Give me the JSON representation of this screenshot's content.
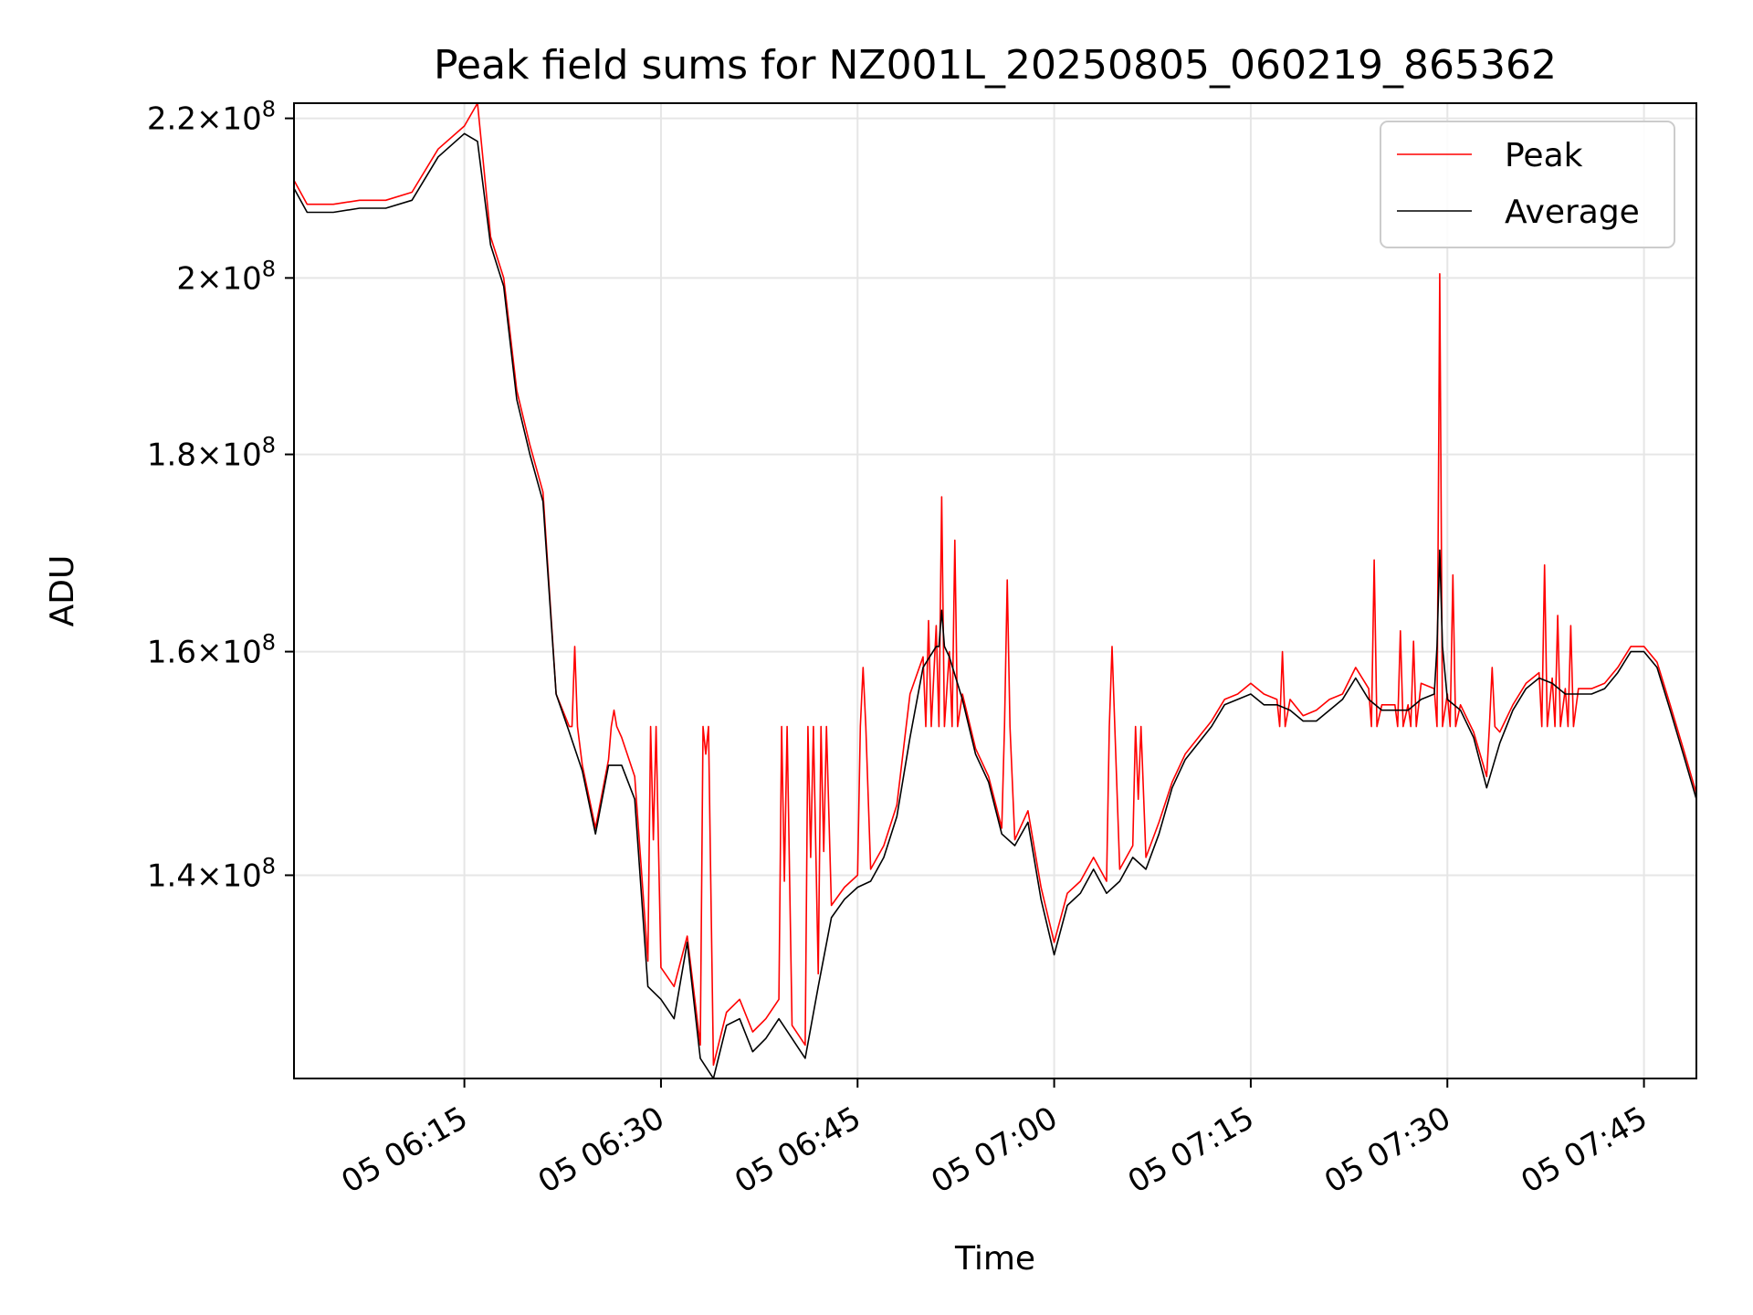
{
  "chart_data": {
    "type": "line",
    "title": "Peak field sums for NZ001L_20250805_060219_865362",
    "xlabel": "Time",
    "ylabel": "ADU",
    "x_range": [
      "05 06:02",
      "05 07:49"
    ],
    "y_range": [
      124000000,
      222000000
    ],
    "y_scale": "log",
    "grid": true,
    "legend_position": "top-right",
    "x_ticks": [
      {
        "t": "05 06:15",
        "label": "05 06:15"
      },
      {
        "t": "05 06:30",
        "label": "05 06:30"
      },
      {
        "t": "05 06:45",
        "label": "05 06:45"
      },
      {
        "t": "05 07:00",
        "label": "05 07:00"
      },
      {
        "t": "05 07:15",
        "label": "05 07:15"
      },
      {
        "t": "05 07:30",
        "label": "05 07:30"
      },
      {
        "t": "05 07:45",
        "label": "05 07:45"
      }
    ],
    "y_ticks": [
      {
        "value": 140000000,
        "mantissa": "1.4",
        "exponent": "8"
      },
      {
        "value": 160000000,
        "mantissa": "1.6",
        "exponent": "8"
      },
      {
        "value": 180000000,
        "mantissa": "1.8",
        "exponent": "8"
      },
      {
        "value": 200000000,
        "mantissa": "2",
        "exponent": "8"
      },
      {
        "value": 220000000,
        "mantissa": "2.2",
        "exponent": "8"
      }
    ],
    "series": [
      {
        "name": "Peak",
        "color": "#ff0000",
        "x": [
          "05 06:02",
          "05 06:03",
          "05 06:05",
          "05 06:07",
          "05 06:09",
          "05 06:11",
          "05 06:13",
          "05 06:15",
          "05 06:16",
          "05 06:17",
          "05 06:18",
          "05 06:19",
          "05 06:20",
          "05 06:21",
          "05 06:22",
          "05 06:23",
          "05 06:24",
          "05 06:25",
          "05 06:26",
          "05 06:27",
          "05 06:28",
          "05 06:29",
          "05 06:30",
          "05 06:31",
          "05 06:32",
          "05 06:33",
          "05 06:34",
          "05 06:35",
          "05 06:36",
          "05 06:37",
          "05 06:38",
          "05 06:39",
          "05 06:40",
          "05 06:41",
          "05 06:42",
          "05 06:43",
          "05 06:44",
          "05 06:45",
          "05 06:46",
          "05 06:47",
          "05 06:48",
          "05 06:49",
          "05 06:50",
          "05 06:51",
          "05 06:52",
          "05 06:53",
          "05 06:54",
          "05 06:55",
          "05 06:56",
          "05 06:57",
          "05 06:58",
          "05 06:59",
          "05 07:00",
          "05 07:01",
          "05 07:02",
          "05 07:03",
          "05 07:04",
          "05 07:05",
          "05 07:06",
          "05 07:07",
          "05 07:08",
          "05 07:09",
          "05 07:10",
          "05 07:11",
          "05 07:12",
          "05 07:13",
          "05 07:14",
          "05 07:15",
          "05 07:16",
          "05 07:17",
          "05 07:18",
          "05 07:19",
          "05 07:20",
          "05 07:21",
          "05 07:22",
          "05 07:23",
          "05 07:24",
          "05 07:25",
          "05 07:26",
          "05 07:27",
          "05 07:28",
          "05 07:29",
          "05 07:30",
          "05 07:31",
          "05 07:32",
          "05 07:33",
          "05 07:34",
          "05 07:35",
          "05 07:36",
          "05 07:37",
          "05 07:38",
          "05 07:39",
          "05 07:40",
          "05 07:41",
          "05 07:42",
          "05 07:43",
          "05 07:44",
          "05 07:45",
          "05 07:46",
          "05 07:47",
          "05 07:48",
          "05 07:49"
        ],
        "values": [
          212000000,
          209000000,
          209000000,
          209500000,
          209500000,
          210500000,
          216000000,
          219000000,
          222000000,
          205000000,
          200000000,
          187000000,
          181000000,
          176000000,
          156000000,
          153000000,
          149500000,
          144000000,
          150000000,
          152000000,
          148500000,
          133000000,
          132500000,
          131000000,
          135000000,
          126500000,
          125000000,
          129000000,
          130000000,
          127500000,
          128500000,
          130000000,
          128000000,
          126500000,
          132000000,
          137500000,
          139000000,
          140000000,
          140500000,
          142500000,
          146000000,
          156000000,
          159500000,
          162500000,
          160000000,
          156000000,
          151000000,
          148500000,
          144000000,
          143000000,
          145500000,
          139000000,
          134500000,
          138500000,
          139500000,
          141500000,
          139500000,
          140500000,
          142500000,
          141500000,
          144500000,
          148000000,
          150500000,
          152000000,
          153500000,
          155500000,
          156000000,
          157000000,
          156000000,
          155500000,
          155500000,
          154000000,
          154500000,
          155500000,
          156000000,
          158500000,
          156500000,
          155000000,
          155000000,
          155000000,
          157000000,
          156500000,
          156000000,
          155000000,
          152500000,
          148500000,
          152500000,
          155000000,
          157000000,
          158000000,
          157500000,
          156500000,
          156500000,
          156500000,
          157000000,
          158500000,
          160500000,
          160500000,
          159000000,
          155000000,
          151000000,
          147000000
        ]
      },
      {
        "name": "Average",
        "color": "#000000",
        "x": [
          "05 06:02",
          "05 06:03",
          "05 06:05",
          "05 06:07",
          "05 06:09",
          "05 06:11",
          "05 06:13",
          "05 06:15",
          "05 06:16",
          "05 06:17",
          "05 06:18",
          "05 06:19",
          "05 06:20",
          "05 06:21",
          "05 06:22",
          "05 06:23",
          "05 06:24",
          "05 06:25",
          "05 06:26",
          "05 06:27",
          "05 06:28",
          "05 06:29",
          "05 06:30",
          "05 06:31",
          "05 06:32",
          "05 06:33",
          "05 06:34",
          "05 06:35",
          "05 06:36",
          "05 06:37",
          "05 06:38",
          "05 06:39",
          "05 06:40",
          "05 06:41",
          "05 06:42",
          "05 06:43",
          "05 06:44",
          "05 06:45",
          "05 06:46",
          "05 06:47",
          "05 06:48",
          "05 06:49",
          "05 06:50",
          "05 06:51",
          "05 06:52",
          "05 06:53",
          "05 06:54",
          "05 06:55",
          "05 06:56",
          "05 06:57",
          "05 06:58",
          "05 06:59",
          "05 07:00",
          "05 07:01",
          "05 07:02",
          "05 07:03",
          "05 07:04",
          "05 07:05",
          "05 07:06",
          "05 07:07",
          "05 07:08",
          "05 07:09",
          "05 07:10",
          "05 07:11",
          "05 07:12",
          "05 07:13",
          "05 07:14",
          "05 07:15",
          "05 07:16",
          "05 07:17",
          "05 07:18",
          "05 07:19",
          "05 07:20",
          "05 07:21",
          "05 07:22",
          "05 07:23",
          "05 07:24",
          "05 07:25",
          "05 07:26",
          "05 07:27",
          "05 07:28",
          "05 07:29",
          "05 07:30",
          "05 07:31",
          "05 07:32",
          "05 07:33",
          "05 07:34",
          "05 07:35",
          "05 07:36",
          "05 07:37",
          "05 07:38",
          "05 07:39",
          "05 07:40",
          "05 07:41",
          "05 07:42",
          "05 07:43",
          "05 07:44",
          "05 07:45",
          "05 07:46",
          "05 07:47",
          "05 07:48",
          "05 07:49"
        ],
        "values": [
          211000000,
          208000000,
          208000000,
          208500000,
          208500000,
          209500000,
          215000000,
          218000000,
          217000000,
          204000000,
          199000000,
          186000000,
          180000000,
          175000000,
          156000000,
          152500000,
          149000000,
          143500000,
          149500000,
          149500000,
          146500000,
          131000000,
          130000000,
          128500000,
          134500000,
          125500000,
          124000000,
          128000000,
          128500000,
          126000000,
          127000000,
          128500000,
          127000000,
          125500000,
          131000000,
          136500000,
          138000000,
          139000000,
          139500000,
          141500000,
          145000000,
          152000000,
          158500000,
          160500000,
          159500000,
          155500000,
          150500000,
          148000000,
          143500000,
          142500000,
          144500000,
          138000000,
          133500000,
          137500000,
          138500000,
          140500000,
          138500000,
          139500000,
          141500000,
          140500000,
          143500000,
          147500000,
          150000000,
          151500000,
          153000000,
          155000000,
          155500000,
          156000000,
          155000000,
          155000000,
          154500000,
          153500000,
          153500000,
          154500000,
          155500000,
          157500000,
          155500000,
          154500000,
          154500000,
          154500000,
          155500000,
          156000000,
          155500000,
          154500000,
          152000000,
          147500000,
          151500000,
          154500000,
          156500000,
          157500000,
          157000000,
          156000000,
          156000000,
          156000000,
          156500000,
          158000000,
          160000000,
          160000000,
          158500000,
          154500000,
          150500000,
          146500000
        ]
      }
    ],
    "spikes": [
      {
        "series": "Peak",
        "x": "05 06:23",
        "value": 160500000
      },
      {
        "series": "Peak",
        "x": "05 06:26",
        "value": 154500000
      },
      {
        "series": "Peak",
        "x": "05 06:29",
        "value": 143000000
      },
      {
        "series": "Peak",
        "x": "05 06:33",
        "value": 150500000
      },
      {
        "series": "Peak",
        "x": "05 06:39",
        "value": 139500000
      },
      {
        "series": "Peak",
        "x": "05 06:41",
        "value": 141500000
      },
      {
        "series": "Peak",
        "x": "05 06:42",
        "value": 142000000
      },
      {
        "series": "Peak",
        "x": "05 06:45",
        "value": 158500000
      },
      {
        "series": "Peak",
        "x": "05 06:50",
        "value": 163000000
      },
      {
        "series": "Peak",
        "x": "05 06:51",
        "value": 175500000
      },
      {
        "series": "Peak",
        "x": "05 06:52",
        "value": 171000000
      },
      {
        "series": "Peak",
        "x": "05 06:56",
        "value": 167000000
      },
      {
        "series": "Peak",
        "x": "05 07:04",
        "value": 160500000
      },
      {
        "series": "Peak",
        "x": "05 07:06",
        "value": 146500000
      },
      {
        "series": "Peak",
        "x": "05 07:17",
        "value": 160000000
      },
      {
        "series": "Peak",
        "x": "05 07:24",
        "value": 169000000
      },
      {
        "series": "Peak",
        "x": "05 07:26",
        "value": 162000000
      },
      {
        "series": "Peak",
        "x": "05 07:27",
        "value": 161000000
      },
      {
        "series": "Peak",
        "x": "05 07:29",
        "value": 200500000
      },
      {
        "series": "Peak",
        "x": "05 07:30",
        "value": 167500000
      },
      {
        "series": "Peak",
        "x": "05 07:33",
        "value": 158500000
      },
      {
        "series": "Peak",
        "x": "05 07:37",
        "value": 168500000
      },
      {
        "series": "Peak",
        "x": "05 07:38",
        "value": 163500000
      },
      {
        "series": "Peak",
        "x": "05 07:39",
        "value": 162500000
      },
      {
        "series": "Average",
        "x": "05 06:51",
        "value": 164000000
      },
      {
        "series": "Average",
        "x": "05 07:29",
        "value": 170000000
      }
    ]
  }
}
